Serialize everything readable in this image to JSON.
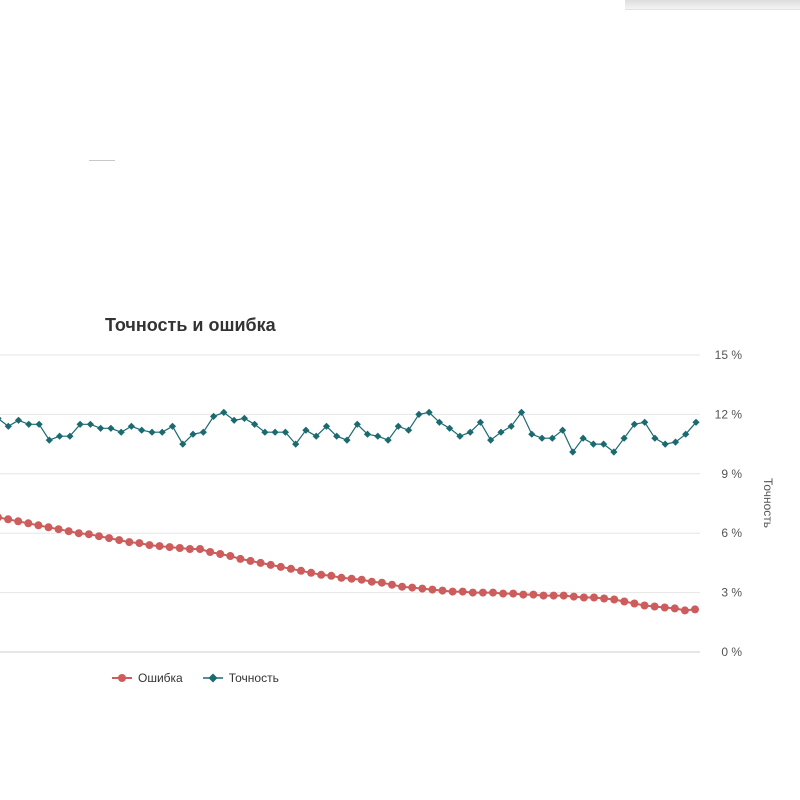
{
  "chart_data": {
    "type": "line",
    "title": "Точность и ошибка",
    "xlabel": "",
    "ylabel": "Точность",
    "ylim": [
      0,
      15
    ],
    "y_ticks": [
      "0 %",
      "3 %",
      "6 %",
      "9 %",
      "12 %",
      "15 %"
    ],
    "grid": true,
    "legend_position": "bottom-left",
    "series": [
      {
        "name": "Ошибка",
        "color": "#cd5c5c",
        "marker": "circle",
        "values": [
          6.8,
          6.7,
          6.6,
          6.5,
          6.4,
          6.3,
          6.2,
          6.1,
          6.0,
          5.95,
          5.85,
          5.75,
          5.65,
          5.55,
          5.5,
          5.4,
          5.35,
          5.3,
          5.25,
          5.2,
          5.2,
          5.05,
          4.95,
          4.85,
          4.7,
          4.6,
          4.5,
          4.4,
          4.3,
          4.2,
          4.1,
          4.0,
          3.9,
          3.85,
          3.75,
          3.7,
          3.65,
          3.55,
          3.5,
          3.4,
          3.3,
          3.25,
          3.2,
          3.15,
          3.1,
          3.05,
          3.05,
          3.0,
          3.0,
          3.0,
          2.95,
          2.95,
          2.9,
          2.9,
          2.85,
          2.85,
          2.85,
          2.8,
          2.75,
          2.75,
          2.7,
          2.65,
          2.55,
          2.45,
          2.35,
          2.3,
          2.25,
          2.2,
          2.1,
          2.15
        ]
      },
      {
        "name": "Точность",
        "color": "#1a6a70",
        "marker": "diamond",
        "values": [
          11.8,
          11.4,
          11.7,
          11.5,
          11.5,
          10.7,
          10.9,
          10.9,
          11.5,
          11.5,
          11.3,
          11.3,
          11.1,
          11.4,
          11.2,
          11.1,
          11.1,
          11.4,
          10.5,
          11.0,
          11.1,
          11.9,
          12.1,
          11.7,
          11.8,
          11.5,
          11.1,
          11.1,
          11.1,
          10.5,
          11.2,
          10.9,
          11.4,
          10.9,
          10.7,
          11.5,
          11.0,
          10.9,
          10.7,
          11.4,
          11.2,
          12.0,
          12.1,
          11.6,
          11.3,
          10.9,
          11.1,
          11.6,
          10.7,
          11.1,
          11.4,
          12.1,
          11.0,
          10.8,
          10.8,
          11.2,
          10.1,
          10.8,
          10.5,
          10.5,
          10.1,
          10.8,
          11.5,
          11.6,
          10.8,
          10.5,
          10.6,
          11.0,
          11.6
        ]
      }
    ]
  }
}
